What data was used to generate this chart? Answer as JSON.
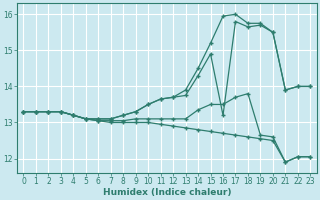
{
  "xlabel": "Humidex (Indice chaleur)",
  "bg_color": "#cce9f0",
  "grid_color": "#ffffff",
  "line_color": "#2e7d6e",
  "xlim": [
    -0.5,
    23.5
  ],
  "ylim": [
    11.6,
    16.3
  ],
  "yticks": [
    12,
    13,
    14,
    15,
    16
  ],
  "xticks": [
    0,
    1,
    2,
    3,
    4,
    5,
    6,
    7,
    8,
    9,
    10,
    11,
    12,
    13,
    14,
    15,
    16,
    17,
    18,
    19,
    20,
    21,
    22,
    23
  ],
  "series": [
    {
      "x": [
        0,
        1,
        2,
        3,
        4,
        5,
        6,
        7,
        8,
        9,
        10,
        11,
        12,
        13,
        14,
        15,
        16,
        17,
        18,
        19,
        20,
        21,
        22,
        23
      ],
      "y": [
        13.3,
        13.3,
        13.3,
        13.3,
        13.2,
        13.1,
        13.1,
        13.1,
        13.2,
        13.3,
        13.5,
        13.65,
        13.7,
        13.9,
        14.5,
        15.2,
        15.95,
        16.0,
        15.75,
        15.75,
        15.5,
        13.9,
        14.0,
        14.0
      ]
    },
    {
      "x": [
        0,
        1,
        2,
        3,
        4,
        5,
        6,
        7,
        8,
        9,
        10,
        11,
        12,
        13,
        14,
        15,
        16,
        17,
        18,
        19,
        20,
        21,
        22,
        23
      ],
      "y": [
        13.3,
        13.3,
        13.3,
        13.3,
        13.2,
        13.1,
        13.1,
        13.1,
        13.2,
        13.3,
        13.5,
        13.65,
        13.7,
        13.75,
        14.3,
        14.9,
        13.2,
        15.8,
        15.65,
        15.7,
        15.5,
        13.9,
        14.0,
        14.0
      ]
    },
    {
      "x": [
        0,
        1,
        2,
        3,
        4,
        5,
        6,
        7,
        8,
        9,
        10,
        11,
        12,
        13,
        14,
        15,
        16,
        17,
        18,
        19,
        20,
        21,
        22,
        23
      ],
      "y": [
        13.3,
        13.3,
        13.3,
        13.3,
        13.2,
        13.1,
        13.05,
        13.05,
        13.05,
        13.1,
        13.1,
        13.1,
        13.1,
        13.1,
        13.35,
        13.5,
        13.5,
        13.7,
        13.8,
        12.65,
        12.6,
        11.9,
        12.05,
        12.05
      ]
    },
    {
      "x": [
        0,
        1,
        2,
        3,
        4,
        5,
        6,
        7,
        8,
        9,
        10,
        11,
        12,
        13,
        14,
        15,
        16,
        17,
        18,
        19,
        20,
        21,
        22,
        23
      ],
      "y": [
        13.3,
        13.3,
        13.3,
        13.3,
        13.2,
        13.1,
        13.05,
        13.0,
        13.0,
        13.0,
        13.0,
        12.95,
        12.9,
        12.85,
        12.8,
        12.75,
        12.7,
        12.65,
        12.6,
        12.55,
        12.5,
        11.9,
        12.05,
        12.05
      ]
    }
  ],
  "marker_indices": {
    "0": [
      0,
      1,
      3,
      6,
      9,
      11,
      12,
      14,
      15,
      17,
      18,
      19,
      20,
      21,
      22
    ],
    "1": [
      0,
      1,
      3,
      6,
      9,
      11,
      12,
      14,
      15,
      16,
      17,
      18,
      19,
      20,
      21,
      22
    ],
    "2": [
      0,
      1,
      3,
      6,
      9,
      11,
      12,
      14,
      15,
      16,
      17,
      18,
      19,
      20,
      21,
      22
    ],
    "3": [
      0,
      1,
      3,
      6,
      9,
      11,
      12,
      14,
      15,
      16,
      17,
      18,
      19,
      20,
      21,
      22
    ]
  }
}
